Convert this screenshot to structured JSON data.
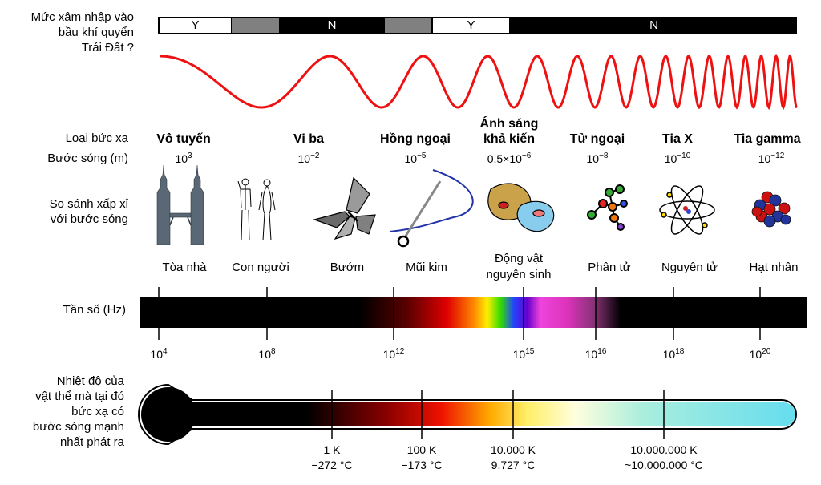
{
  "labels": {
    "penetration": [
      "Mức xâm nhập vào",
      "bầu khí quyển",
      "Trái Đất ?"
    ],
    "radiation_type": "Loại bức xạ",
    "wavelength": "Bước sóng (m)",
    "scale_compare": [
      "So sánh xấp xỉ",
      "với bước sóng"
    ],
    "frequency": "Tần số (Hz)",
    "temperature": [
      "Nhiệt độ của",
      "vật thể mà tại đó",
      "bức xạ có",
      "bước sóng mạnh",
      "nhất phát ra"
    ]
  },
  "penetration_bar": [
    {
      "label": "Y",
      "state": "yes"
    },
    {
      "label": "",
      "state": "partial"
    },
    {
      "label": "N",
      "state": "no"
    },
    {
      "label": "",
      "state": "partial"
    },
    {
      "label": "Y",
      "state": "yes"
    },
    {
      "label": "N",
      "state": "no"
    }
  ],
  "radiation_types": [
    {
      "name": "Vô tuyến",
      "wl_base": "10",
      "wl_exp": "3"
    },
    {
      "name": "Vi ba",
      "wl_base": "10",
      "wl_exp": "−2"
    },
    {
      "name": "Hồng ngoại",
      "wl_base": "10",
      "wl_exp": "−5"
    },
    {
      "name": "Ánh sáng khả kiến",
      "name_lines": [
        "Ánh sáng",
        "khả kiến"
      ],
      "wl_base": "0,5×10",
      "wl_exp": "−6"
    },
    {
      "name": "Tử ngoại",
      "wl_base": "10",
      "wl_exp": "−8"
    },
    {
      "name": "Tia X",
      "wl_base": "10",
      "wl_exp": "−10"
    },
    {
      "name": "Tia gamma",
      "wl_base": "10",
      "wl_exp": "−12"
    }
  ],
  "objects": [
    {
      "name": "Tòa nhà",
      "icon": "building-icon"
    },
    {
      "name": "Con người",
      "icon": "humans-icon"
    },
    {
      "name": "Bướm",
      "icon": "butterfly-icon"
    },
    {
      "name": "Mũi kim",
      "icon": "needle-icon"
    },
    {
      "name": "Động vật nguyên sinh",
      "name_lines": [
        "Động vật",
        "nguyên sinh"
      ],
      "icon": "protozoa-icon"
    },
    {
      "name": "Phân tử",
      "icon": "molecule-icon"
    },
    {
      "name": "Nguyên tử",
      "icon": "atom-icon"
    },
    {
      "name": "Hạt nhân",
      "icon": "nucleus-icon"
    }
  ],
  "frequency_ticks": [
    {
      "base": "10",
      "exp": "4"
    },
    {
      "base": "10",
      "exp": "8"
    },
    {
      "base": "10",
      "exp": "12"
    },
    {
      "base": "10",
      "exp": "15"
    },
    {
      "base": "10",
      "exp": "16"
    },
    {
      "base": "10",
      "exp": "18"
    },
    {
      "base": "10",
      "exp": "20"
    }
  ],
  "temperature_ticks": [
    {
      "kelvin": "1 K",
      "celsius": "−272 °C"
    },
    {
      "kelvin": "100 K",
      "celsius": "−173 °C"
    },
    {
      "kelvin": "10.000 K",
      "celsius": "9.727 °C"
    },
    {
      "kelvin": "10.000.000 K",
      "celsius": "~10.000.000 °C"
    }
  ],
  "colors": {
    "wave": "#ee1111",
    "partial": "#808080",
    "bar": "#000000"
  }
}
